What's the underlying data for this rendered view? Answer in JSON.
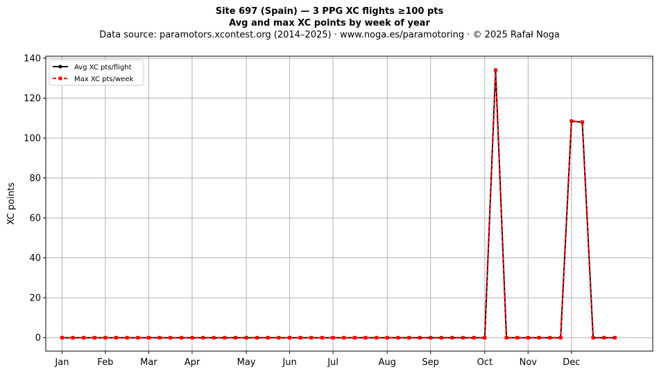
{
  "header": {
    "title": "Site 697 (Spain)  —  3 PPG XC flights ≥100 pts",
    "subtitle": "Avg and max XC points by week of year",
    "source": "Data source: paramotors.xcontest.org (2014–2025)  ·  www.noga.es/paramotoring  ·  © 2025 Rafał Noga"
  },
  "chart_data": {
    "type": "line",
    "title": "Site 697 (Spain)  —  3 PPG XC flights ≥100 pts",
    "subtitle": "Avg and max XC points by week of year",
    "xlabel": "",
    "ylabel": "XC points",
    "x_unit": "week of year",
    "xlim": [
      -1.5,
      54.5
    ],
    "ylim": [
      -6.7,
      141
    ],
    "yticks": [
      0,
      20,
      40,
      60,
      80,
      100,
      120,
      140
    ],
    "month_ticks": [
      {
        "label": "Jan",
        "week": 0
      },
      {
        "label": "Feb",
        "week": 4
      },
      {
        "label": "Mar",
        "week": 8
      },
      {
        "label": "Apr",
        "week": 12
      },
      {
        "label": "May",
        "week": 17
      },
      {
        "label": "Jun",
        "week": 21
      },
      {
        "label": "Jul",
        "week": 25
      },
      {
        "label": "Aug",
        "week": 30
      },
      {
        "label": "Sep",
        "week": 34
      },
      {
        "label": "Oct",
        "week": 39
      },
      {
        "label": "Nov",
        "week": 43
      },
      {
        "label": "Dec",
        "week": 47
      }
    ],
    "grid": true,
    "legend_position": "top-left",
    "x": [
      0,
      1,
      2,
      3,
      4,
      5,
      6,
      7,
      8,
      9,
      10,
      11,
      12,
      13,
      14,
      15,
      16,
      17,
      18,
      19,
      20,
      21,
      22,
      23,
      24,
      25,
      26,
      27,
      28,
      29,
      30,
      31,
      32,
      33,
      34,
      35,
      36,
      37,
      38,
      39,
      40,
      41,
      42,
      43,
      44,
      45,
      46,
      47,
      48,
      49,
      50,
      51
    ],
    "series": [
      {
        "name": "Avg XC pts/flight",
        "color": "#000000",
        "style": "solid",
        "marker": "circle",
        "values": [
          0,
          0,
          0,
          0,
          0,
          0,
          0,
          0,
          0,
          0,
          0,
          0,
          0,
          0,
          0,
          0,
          0,
          0,
          0,
          0,
          0,
          0,
          0,
          0,
          0,
          0,
          0,
          0,
          0,
          0,
          0,
          0,
          0,
          0,
          0,
          0,
          0,
          0,
          0,
          0,
          134,
          0,
          0,
          0,
          0,
          0,
          0,
          108.5,
          108,
          0,
          0,
          0
        ]
      },
      {
        "name": "Max XC pts/week",
        "color": "#ff0000",
        "style": "dashed",
        "marker": "square",
        "values": [
          0,
          0,
          0,
          0,
          0,
          0,
          0,
          0,
          0,
          0,
          0,
          0,
          0,
          0,
          0,
          0,
          0,
          0,
          0,
          0,
          0,
          0,
          0,
          0,
          0,
          0,
          0,
          0,
          0,
          0,
          0,
          0,
          0,
          0,
          0,
          0,
          0,
          0,
          0,
          0,
          134,
          0,
          0,
          0,
          0,
          0,
          0,
          108.5,
          108,
          0,
          0,
          0
        ]
      }
    ]
  }
}
